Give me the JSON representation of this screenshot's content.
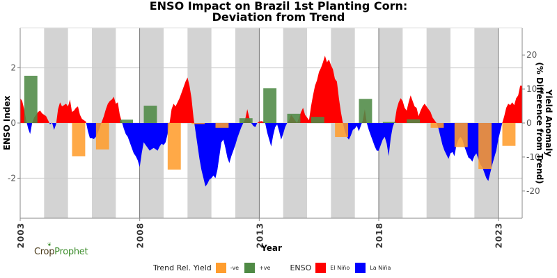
{
  "chart_data": {
    "type": "area",
    "title": "ENSO Impact on Brazil 1st Planting Corn:",
    "subtitle": "Deviation from Trend",
    "xlabel": "Year",
    "ylabel_left": "ENSO Index",
    "ylabel_right_line1": "Yield Anomaly",
    "ylabel_right_line2": "(% Difference from Trend)",
    "xlim": [
      2003,
      2024
    ],
    "ylim_left": [
      -3.45,
      3.45
    ],
    "ylim_right": [
      -28,
      28
    ],
    "x_ticks": [
      2003,
      2008,
      2013,
      2018,
      2023
    ],
    "x_tick_labels": [
      "2003",
      "2008",
      "2013",
      "2018",
      "2023"
    ],
    "y_left_ticks": [
      -2,
      0,
      2
    ],
    "y_left_tick_labels": [
      "-2",
      "0",
      "2"
    ],
    "y_right_ticks": [
      -20,
      -10,
      0,
      10,
      20
    ],
    "y_right_tick_labels": [
      "-20",
      "-10",
      "0",
      "10",
      "20"
    ],
    "grid": true,
    "shaded_years": [
      2004,
      2006,
      2008,
      2010,
      2012,
      2014,
      2016,
      2018,
      2020,
      2022
    ],
    "enso_series": {
      "name": "ENSO Index",
      "start_year": 2003.0,
      "step_years": 0.08333,
      "values": [
        0.9,
        0.8,
        0.5,
        0.1,
        -0.2,
        -0.4,
        0.0,
        0.2,
        0.3,
        0.4,
        0.45,
        0.35,
        0.3,
        0.25,
        0.1,
        -0.05,
        0.02,
        -0.25,
        -0.05,
        0.5,
        0.75,
        0.6,
        0.65,
        0.7,
        0.6,
        0.85,
        0.4,
        0.45,
        0.55,
        0.6,
        0.3,
        0.15,
        0.1,
        0.05,
        -0.3,
        -0.55,
        -0.55,
        -0.58,
        -0.5,
        -0.35,
        -0.15,
        0.05,
        0.25,
        0.5,
        0.7,
        0.8,
        0.85,
        0.95,
        0.7,
        0.75,
        0.3,
        0.05,
        -0.2,
        -0.4,
        -0.5,
        -0.7,
        -0.9,
        -1.1,
        -1.2,
        -1.35,
        -1.6,
        -1.1,
        -0.7,
        -0.8,
        -0.9,
        -1.0,
        -0.95,
        -0.9,
        -0.95,
        -1.0,
        -0.85,
        -0.75,
        -0.8,
        -0.7,
        -0.4,
        0.0,
        0.5,
        0.7,
        0.6,
        0.75,
        0.9,
        1.1,
        1.3,
        1.5,
        1.65,
        1.35,
        0.9,
        0.2,
        -0.3,
        -0.8,
        -1.3,
        -1.7,
        -2.0,
        -2.3,
        -2.2,
        -2.05,
        -2.0,
        -1.9,
        -2.0,
        -1.7,
        -1.2,
        -0.7,
        -0.6,
        -0.9,
        -1.25,
        -1.45,
        -1.2,
        -1.0,
        -0.8,
        -0.55,
        -0.35,
        -0.15,
        0.0,
        0.15,
        0.5,
        0.2,
        0.0,
        -0.1,
        -0.15,
        0.0,
        0.05,
        0.07,
        0.05,
        0.0,
        -0.35,
        -0.6,
        -0.85,
        -0.45,
        -0.15,
        -0.05,
        -0.3,
        -0.6,
        -0.4,
        -0.15,
        0.0,
        0.1,
        0.3,
        0.2,
        0.1,
        0.0,
        0.2,
        0.4,
        0.55,
        0.3,
        0.2,
        0.1,
        0.6,
        1.0,
        1.35,
        1.55,
        1.85,
        2.0,
        2.2,
        2.44,
        2.2,
        2.3,
        2.1,
        1.95,
        1.6,
        1.5,
        0.9,
        0.4,
        0.0,
        -0.3,
        -0.5,
        -0.6,
        -0.45,
        -0.25,
        -0.2,
        -0.1,
        -0.3,
        -0.1,
        0.1,
        0.5,
        0.0,
        -0.25,
        -0.45,
        -0.65,
        -0.85,
        -1.0,
        -1.0,
        -0.8,
        -0.6,
        -0.5,
        -0.75,
        -1.2,
        -0.55,
        -0.15,
        0.05,
        0.5,
        0.75,
        0.9,
        0.8,
        0.55,
        0.45,
        0.75,
        1.0,
        0.8,
        0.6,
        0.55,
        0.25,
        0.45,
        0.6,
        0.7,
        0.6,
        0.5,
        0.4,
        0.2,
        0.1,
        0.0,
        -0.2,
        -0.5,
        -0.8,
        -1.0,
        -1.15,
        -1.3,
        -1.1,
        -1.05,
        -1.2,
        -0.8,
        -0.6,
        -0.5,
        -0.6,
        -0.85,
        -1.05,
        -1.25,
        -1.3,
        -1.4,
        -1.2,
        -1.1,
        -1.3,
        -1.5,
        -1.6,
        -1.8,
        -2.0,
        -2.1,
        -1.8,
        -1.5,
        -1.25,
        -1.0,
        -0.6,
        -0.3,
        0.0,
        0.25,
        0.55,
        0.7,
        0.65,
        0.75,
        0.65,
        0.9,
        1.0,
        1.35
      ]
    },
    "yield_series": {
      "name": "Trend Rel. Yield (%)",
      "years": [
        2003,
        2004,
        2005,
        2006,
        2007,
        2008,
        2009,
        2010,
        2011,
        2012,
        2013,
        2014,
        2015,
        2016,
        2017,
        2018,
        2019,
        2020,
        2021,
        2022,
        2023
      ],
      "values": [
        13.9,
        0.0,
        -9.8,
        -7.8,
        1.0,
        5.1,
        -13.7,
        -0.3,
        -1.4,
        1.4,
        10.2,
        2.7,
        1.8,
        -4.1,
        7.1,
        0.3,
        1.1,
        -1.4,
        -7.1,
        -13.5,
        -6.7
      ]
    },
    "legend": {
      "placement": "bottom-center",
      "yield_title": "Trend Rel. Yield",
      "yield_neg_label": "-ve",
      "yield_pos_label": "+ve",
      "enso_title": "ENSO",
      "el_nino_label": "El Niño",
      "la_nina_label": "La Niña"
    },
    "colors": {
      "el_nino": "#ff0000",
      "la_nina": "#0000ff",
      "yield_neg": "#ff9d2e",
      "yield_pos": "#4f8a45",
      "shade": "#d3d3d3",
      "grid": "#cccccc",
      "axis": "#888888"
    }
  },
  "branding": {
    "logo_part1": "Crop",
    "logo_part2": "Prophet"
  }
}
